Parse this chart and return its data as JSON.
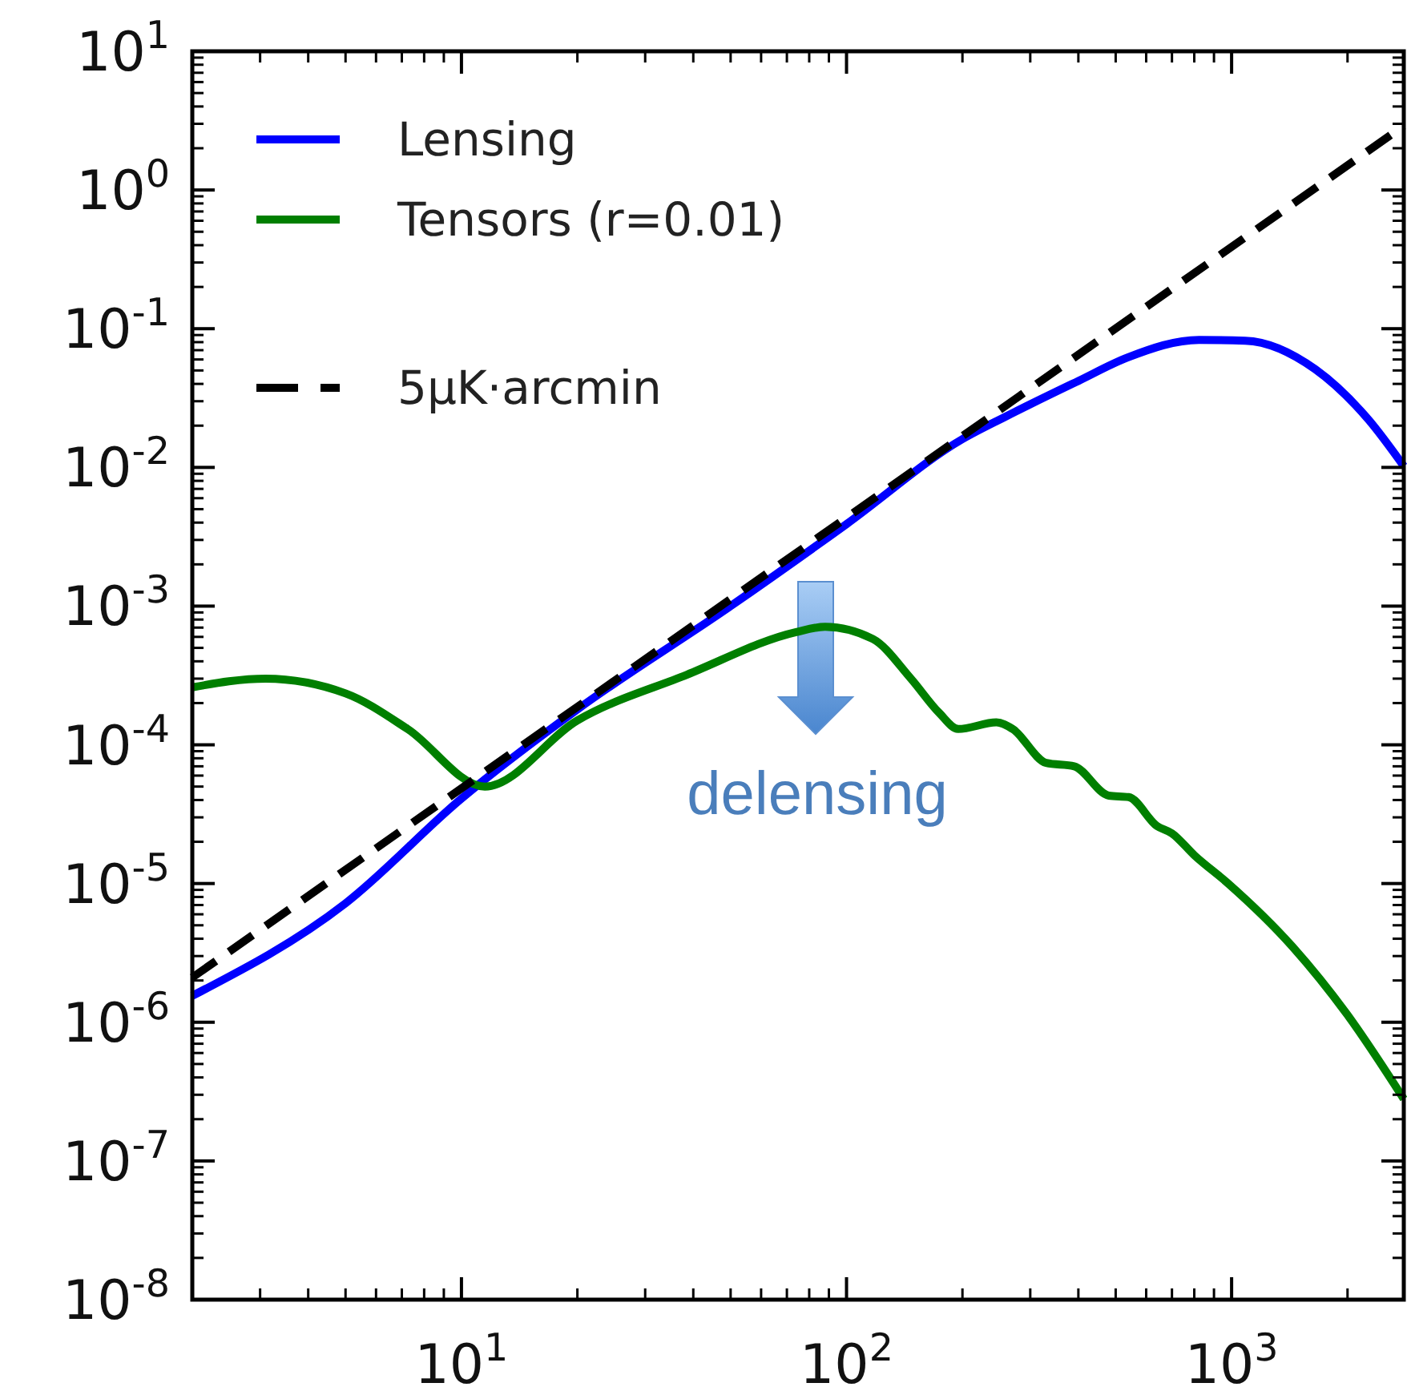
{
  "chart_data": {
    "type": "line",
    "log": "xy",
    "legend": "top left",
    "xlim": [
      2,
      2800
    ],
    "ylim": [
      1e-08,
      10
    ],
    "xticks": [
      {
        "value": 10,
        "label": "10$^{1}$"
      },
      {
        "value": 100,
        "label": "10$^{2}$"
      },
      {
        "value": 1000,
        "label": "10$^{3}$"
      }
    ],
    "yticks": [
      {
        "value": 1e-08,
        "label": "10$^{-8}$"
      },
      {
        "value": 1e-07,
        "label": "10$^{-7}$"
      },
      {
        "value": 1e-06,
        "label": "10$^{-6}$"
      },
      {
        "value": 1e-05,
        "label": "10$^{-5}$"
      },
      {
        "value": 0.0001,
        "label": "10$^{-4}$"
      },
      {
        "value": 0.001,
        "label": "10$^{-3}$"
      },
      {
        "value": 0.01,
        "label": "10$^{-2}$"
      },
      {
        "value": 0.1,
        "label": "10$^{-1}$"
      },
      {
        "value": 1,
        "label": "10$^{0}$"
      },
      {
        "value": 10,
        "label": "10$^{1}$"
      }
    ],
    "series": [
      {
        "name": "Lensing",
        "color": "#0000ff",
        "x": [
          2,
          5,
          10,
          20,
          50,
          100,
          200,
          257,
          400,
          537,
          823,
          1085,
          1650,
          2270,
          2800
        ],
        "values": [
          1.55e-06,
          7.2e-06,
          4.1e-05,
          0.00018,
          0.001,
          0.0039,
          0.016,
          0.023,
          0.042,
          0.062,
          0.083,
          0.082,
          0.051,
          0.022,
          0.0102
        ]
      },
      {
        "name": "Tensors (r=0.01)",
        "color": "#007f00",
        "x": [
          2,
          3.1,
          5,
          7.25,
          11.5,
          20,
          38.5,
          74,
          88,
          117,
          147,
          174,
          195,
          245,
          270,
          330,
          390,
          480,
          540,
          640,
          700,
          800,
          980,
          1440,
          1990,
          2800
        ],
        "values": [
          0.00026,
          0.0003,
          0.000235,
          0.00013,
          5e-05,
          0.00015,
          0.00032,
          0.00065,
          0.00071,
          0.00058,
          0.0003,
          0.00017,
          0.00013,
          0.000145,
          0.00013,
          7.4e-05,
          7e-05,
          4.3e-05,
          4.2e-05,
          2.6e-05,
          2.3e-05,
          1.6e-05,
          1e-05,
          3.5e-06,
          1.15e-06,
          2.8e-07
        ]
      },
      {
        "name": "5μK·arcmin",
        "color": "#000000",
        "line_style": "dashed",
        "x": [
          2,
          2800
        ],
        "values": [
          2.1e-06,
          2.9
        ]
      }
    ],
    "annotations": [
      "delensing"
    ]
  }
}
